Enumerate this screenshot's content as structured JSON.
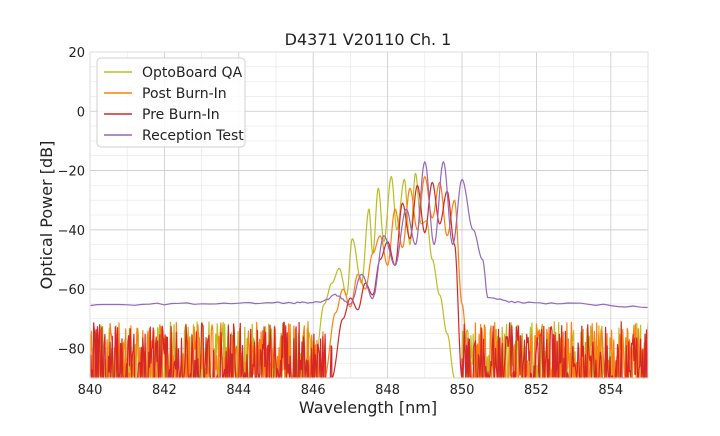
{
  "chart_data": {
    "type": "line",
    "title": "D4371 V20110 Ch. 1",
    "xlabel": "Wavelength [nm]",
    "ylabel": "Optical Power [dB]",
    "xlim": [
      840,
      855
    ],
    "ylim": [
      -90,
      20
    ],
    "xticks": [
      840,
      842,
      844,
      846,
      848,
      850,
      852,
      854
    ],
    "yticks": [
      -80,
      -60,
      -40,
      -20,
      0,
      20
    ],
    "x_tick_labels": [
      "840",
      "842",
      "844",
      "846",
      "848",
      "850",
      "852",
      "854"
    ],
    "y_tick_labels": [
      "−80",
      "−60",
      "−40",
      "−20",
      "0",
      "20"
    ],
    "grid": true,
    "legend_position": "top-left",
    "series": [
      {
        "name": "OptoBoard QA",
        "color": "#bcbd22",
        "noise_floor": true,
        "x": [
          846.0,
          846.3,
          846.5,
          846.7,
          846.9,
          847.05,
          847.3,
          847.5,
          847.6,
          847.75,
          847.9,
          848.1,
          848.25,
          848.45,
          848.6,
          848.75,
          848.9,
          849.05,
          849.2,
          849.4,
          849.6,
          849.8,
          850.0
        ],
        "y": [
          -90,
          -65,
          -58,
          -53,
          -62,
          -43,
          -58,
          -33,
          -48,
          -26,
          -44,
          -22,
          -40,
          -23,
          -45,
          -21,
          -38,
          -37,
          -50,
          -62,
          -75,
          -90,
          -90
        ]
      },
      {
        "name": "Post Burn-In",
        "color": "#ff7f0e",
        "noise_floor": true,
        "x": [
          846.3,
          846.6,
          846.8,
          847.0,
          847.2,
          847.4,
          847.6,
          847.8,
          848.0,
          848.2,
          848.4,
          848.6,
          848.8,
          849.0,
          849.2,
          849.4,
          849.6,
          849.8,
          850.0,
          850.2
        ],
        "y": [
          -90,
          -68,
          -60,
          -66,
          -55,
          -60,
          -48,
          -42,
          -52,
          -33,
          -46,
          -26,
          -40,
          -22,
          -36,
          -24,
          -42,
          -30,
          -65,
          -90
        ]
      },
      {
        "name": "Pre Burn-In",
        "color": "#d62728",
        "noise_floor": true,
        "x": [
          846.5,
          846.8,
          847.0,
          847.2,
          847.4,
          847.6,
          847.8,
          848.0,
          848.2,
          848.4,
          848.6,
          848.8,
          849.0,
          849.2,
          849.4,
          849.6,
          849.8,
          850.0
        ],
        "y": [
          -90,
          -70,
          -63,
          -67,
          -58,
          -62,
          -50,
          -44,
          -52,
          -31,
          -43,
          -25,
          -41,
          -24,
          -38,
          -27,
          -45,
          -90
        ]
      },
      {
        "name": "Reception Test",
        "color": "#9467bd",
        "noise_floor": false,
        "x": [
          840,
          842,
          844,
          845.5,
          846.2,
          846.6,
          847.0,
          847.3,
          847.6,
          847.9,
          848.2,
          848.5,
          848.75,
          849.0,
          849.25,
          849.5,
          849.75,
          850.0,
          850.3,
          850.55,
          850.7,
          851.5,
          853,
          855
        ],
        "y": [
          -65.5,
          -65,
          -64.8,
          -64.6,
          -64.5,
          -62,
          -65,
          -55,
          -63,
          -42,
          -52,
          -33,
          -45,
          -17,
          -45,
          -17,
          -45,
          -23,
          -40,
          -50,
          -63,
          -64.5,
          -65,
          -66
        ]
      }
    ]
  }
}
